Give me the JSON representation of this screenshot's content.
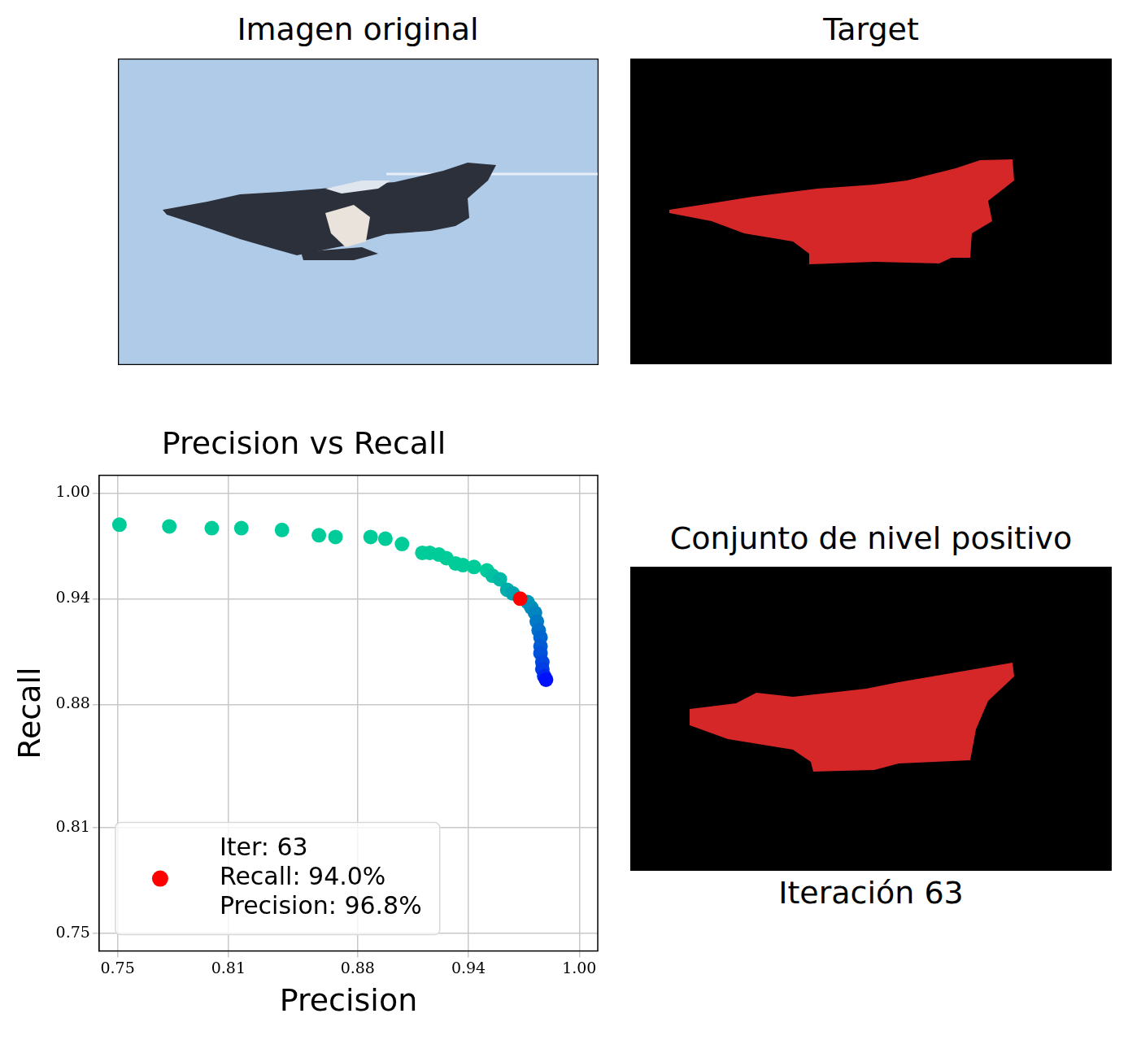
{
  "panels": [
    {
      "title": "Imagen original"
    },
    {
      "title": "Target"
    },
    {
      "title": "Conjunto de nivel positivo",
      "caption": "Iteración 63"
    }
  ],
  "chart_data": {
    "type": "scatter",
    "title": "Precision vs Recall",
    "x_label": "Precision",
    "y_label": "Recall",
    "xlim": [
      0.74,
      1.01
    ],
    "ylim": [
      0.74,
      1.01
    ],
    "xticks": [
      0.75,
      0.81,
      0.88,
      0.94,
      {
        "value": 1,
        "label": "1.00"
      }
    ],
    "yticks": [
      0.75,
      0.81,
      0.88,
      0.94,
      {
        "value": 1,
        "label": "1.00"
      }
    ],
    "grid": true,
    "legend": "lower left",
    "series": [
      {
        "marker": "circle",
        "x": [
          0.751,
          0.778,
          0.801,
          0.817,
          0.839,
          0.859,
          0.868,
          0.887,
          0.895,
          0.904,
          0.915,
          0.919,
          0.924,
          0.928,
          0.933,
          0.937,
          0.943,
          0.95,
          0.953,
          0.957,
          0.961,
          0.964,
          0.972,
          0.974,
          0.976,
          0.977,
          0.978,
          0.979,
          0.979,
          0.979,
          0.98,
          0.98,
          0.981,
          0.982
        ],
        "values": [
          0.982,
          0.981,
          0.98,
          0.98,
          0.979,
          0.976,
          0.975,
          0.975,
          0.974,
          0.971,
          0.966,
          0.966,
          0.965,
          0.963,
          0.96,
          0.959,
          0.958,
          0.956,
          0.953,
          0.951,
          0.945,
          0.943,
          0.938,
          0.935,
          0.932,
          0.927,
          0.922,
          0.918,
          0.913,
          0.909,
          0.904,
          0.9,
          0.896,
          0.894
        ],
        "colors": [
          "#00cc99",
          "#00cc99",
          "#00cc99",
          "#00cc99",
          "#00cc99",
          "#00cc99",
          "#00cc99",
          "#00cc99",
          "#00cc99",
          "#00cc99",
          "#00cc99",
          "#00cc99",
          "#00cc99",
          "#00cc99",
          "#00cc99",
          "#00cc99",
          "#00cc99",
          "#00cc99",
          "#00c2a0",
          "#00b8a6",
          "#00aeab",
          "#00a3b0",
          "#0099b5",
          "#008fba",
          "#0085c0",
          "#007ac5",
          "#0070ca",
          "#0066cf",
          "#005cd5",
          "#0052da",
          "#0047df",
          "#003de5",
          "#0029ef",
          "#0010fa"
        ]
      },
      {
        "name": "Iter: 63\nRecall: 94.0%\nPrecision: 96.8%",
        "marker": "circle",
        "color": "#ff0000",
        "x": [
          0.968
        ],
        "values": [
          0.94
        ]
      }
    ]
  }
}
